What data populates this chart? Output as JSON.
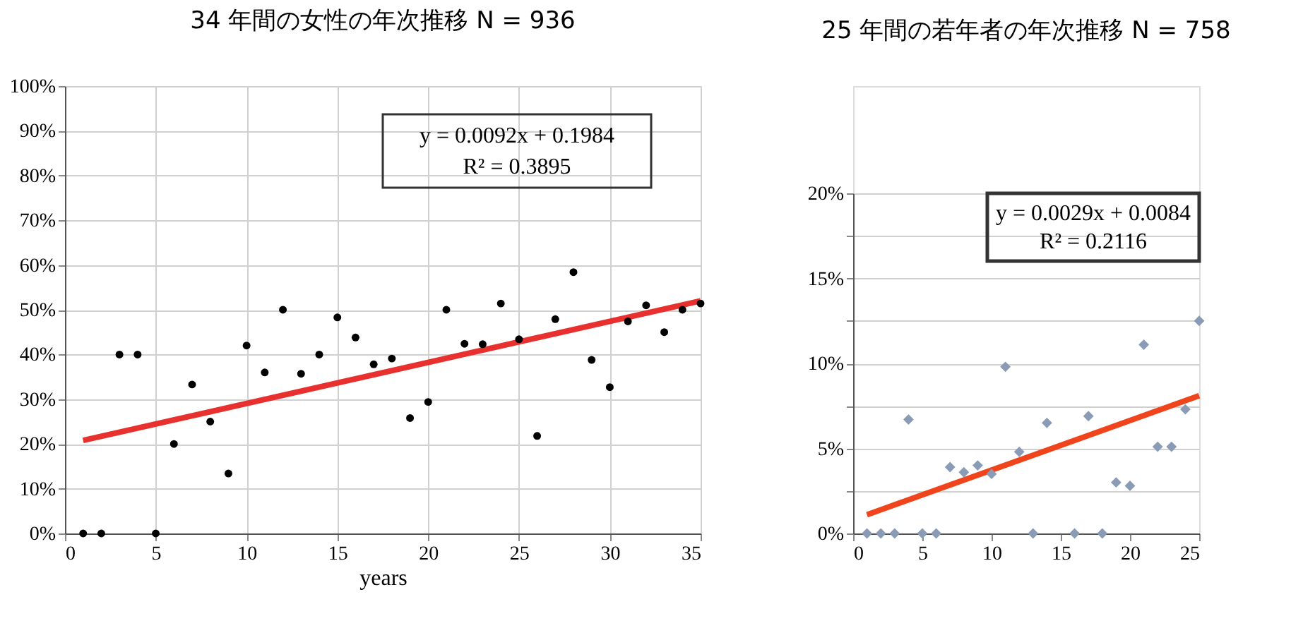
{
  "chart_data": [
    {
      "type": "scatter",
      "title": "34 年間の女性の年次推移 N = 936",
      "xlabel": "years",
      "grid": true,
      "x": [
        1,
        2,
        3,
        4,
        5,
        6,
        7,
        8,
        9,
        10,
        11,
        12,
        13,
        14,
        15,
        16,
        17,
        18,
        19,
        20,
        21,
        22,
        23,
        24,
        25,
        26,
        27,
        28,
        29,
        30,
        31,
        32,
        33,
        34,
        35
      ],
      "xlim": [
        0,
        35
      ],
      "xticks": [
        0,
        5,
        10,
        15,
        20,
        25,
        30,
        35
      ],
      "ylim": [
        0,
        100
      ],
      "yticks": [
        {
          "value": 0,
          "label": "0%"
        },
        {
          "value": 10,
          "label": "10%"
        },
        {
          "value": 20,
          "label": "20%"
        },
        {
          "value": 30,
          "label": "30%"
        },
        {
          "value": 40,
          "label": "40%"
        },
        {
          "value": 50,
          "label": "50%"
        },
        {
          "value": 60,
          "label": "60%"
        },
        {
          "value": 70,
          "label": "70%"
        },
        {
          "value": 80,
          "label": "80%"
        },
        {
          "value": 90,
          "label": "90%"
        },
        {
          "value": 100,
          "label": "100%"
        }
      ],
      "series": [
        {
          "color": "#000000",
          "marker": "circle",
          "values": [
            0,
            0,
            40,
            40,
            0,
            20,
            33.3,
            25,
            13.4,
            42,
            36,
            50,
            35.7,
            40,
            48.3,
            43.8,
            37.8,
            39.1,
            25.8,
            29.4,
            50,
            42.4,
            42.3,
            51.4,
            43.4,
            21.8,
            47.9,
            58.4,
            38.8,
            32.7,
            47.4,
            51,
            45,
            50,
            51.4
          ]
        },
        {
          "type": "line",
          "color": "#e8312f",
          "x": [
            1,
            35
          ],
          "values": [
            20.8,
            52
          ]
        }
      ],
      "annotations": [
        "y = 0.0092x + 0.1984",
        "R² = 0.3895"
      ]
    },
    {
      "type": "scatter",
      "title": "25 年間の若年者の年次推移 N = 758",
      "grid": "y",
      "x": [
        1,
        2,
        3,
        4,
        5,
        6,
        7,
        8,
        9,
        10,
        11,
        12,
        13,
        14,
        16,
        17,
        18,
        19,
        20,
        21,
        22,
        23,
        24,
        25
      ],
      "xlim": [
        0,
        25
      ],
      "xticks": [
        0,
        5,
        10,
        15,
        20,
        25
      ],
      "ylim": [
        0,
        20
      ],
      "yticks": [
        {
          "value": 0,
          "label": "0%"
        },
        {
          "value": 2.5,
          "label": null
        },
        {
          "value": 5,
          "label": "5%"
        },
        {
          "value": 7.5,
          "label": null
        },
        {
          "value": 10,
          "label": "10%"
        },
        {
          "value": 12.5,
          "label": null
        },
        {
          "value": 15,
          "label": "15%"
        },
        {
          "value": 17.5,
          "label": null
        },
        {
          "value": 20,
          "label": "20%"
        }
      ],
      "series": [
        {
          "color": "#8a9bb5",
          "marker": "diamond",
          "values": [
            0,
            0,
            0,
            6.7,
            0,
            0,
            3.9,
            3.6,
            4,
            3.5,
            9.8,
            4.8,
            0,
            6.5,
            0,
            6.9,
            0,
            3,
            2.8,
            11.1,
            5.1,
            5.1,
            7.3,
            12.5
          ]
        },
        {
          "type": "line",
          "color": "#f0441c",
          "x": [
            1,
            25
          ],
          "values": [
            1.1,
            8.1
          ]
        }
      ],
      "annotations": [
        "y = 0.0029x + 0.0084",
        "R² = 0.2116"
      ]
    }
  ]
}
